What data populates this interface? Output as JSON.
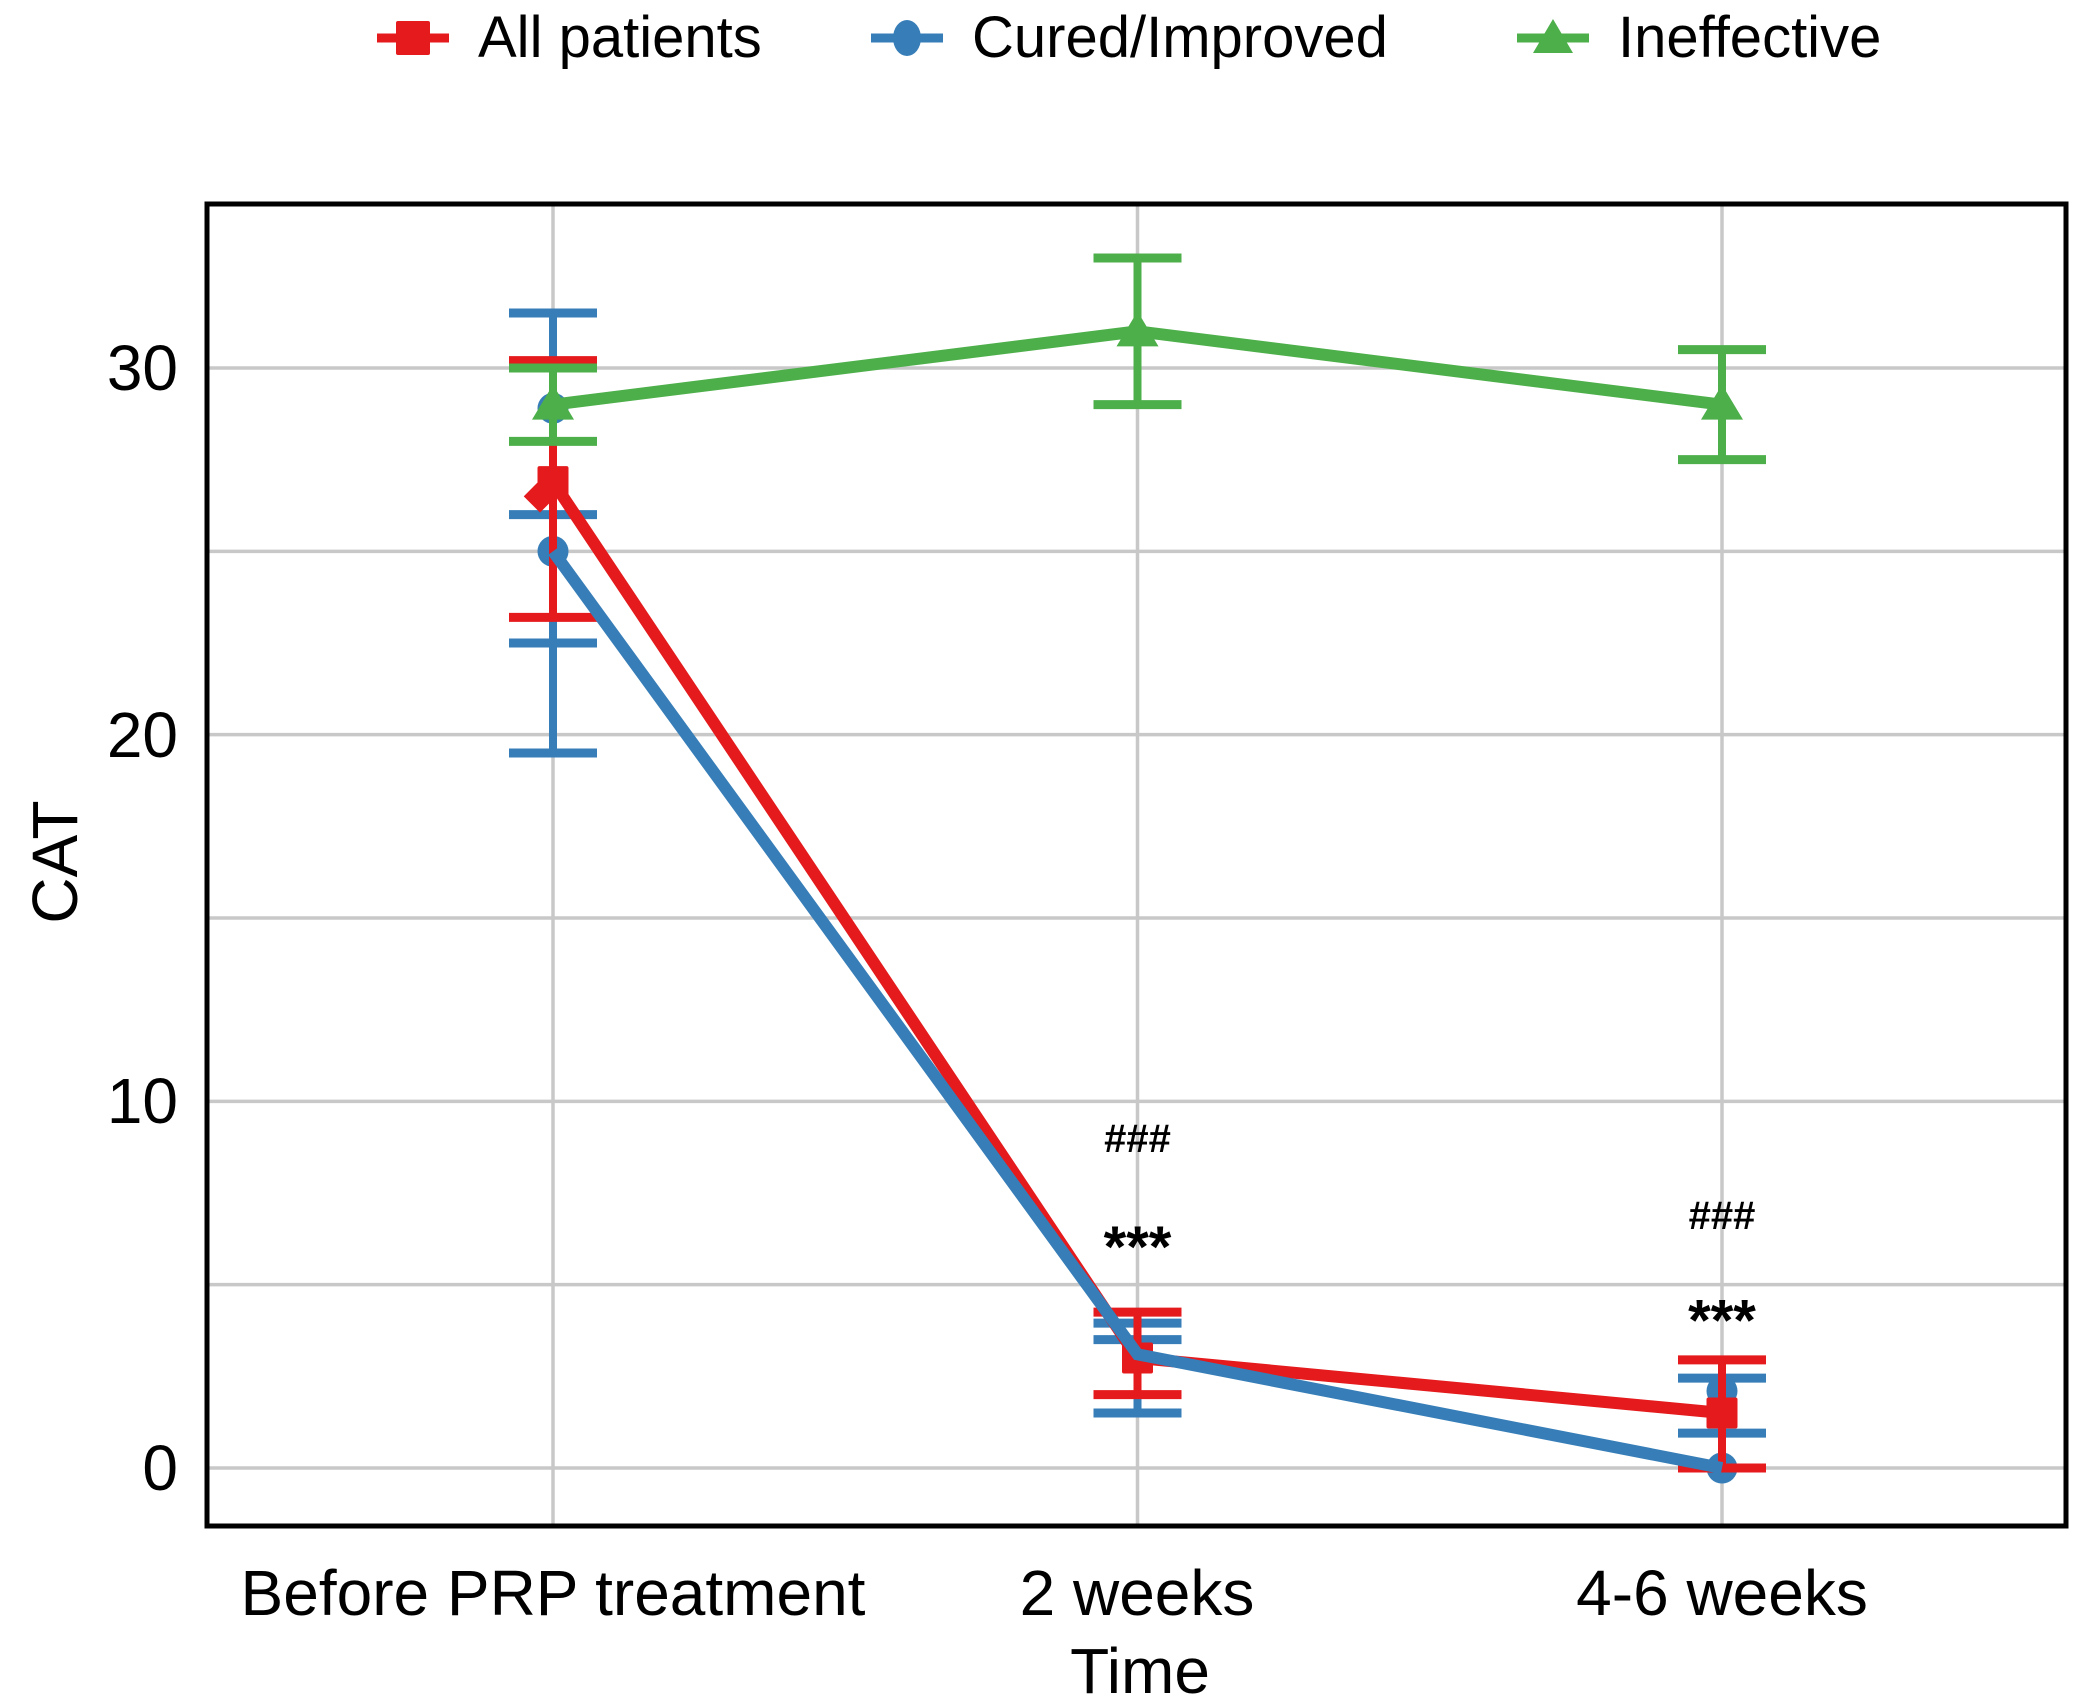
{
  "figure": {
    "background": "#ffffff",
    "grid_color": "#c8c8c8",
    "spine_color": "#000000",
    "text_color": "#000000"
  },
  "chart_data": {
    "type": "line",
    "title": "",
    "xlabel": "Time",
    "ylabel": "CAT",
    "categories": [
      "Before PRP treatment",
      "2 weeks",
      "4-6 weeks"
    ],
    "ytick_labels": [
      "30",
      "20",
      "10",
      "0"
    ],
    "yticks": [
      30,
      20,
      10,
      0
    ],
    "gridlines_y": [
      0,
      5,
      10,
      15,
      20,
      25,
      30
    ],
    "ylim": [
      -1.6,
      34.5
    ],
    "grid": true,
    "legend_position": "top",
    "series": [
      {
        "name": "All patients",
        "color": "#e41a1c",
        "marker": "square",
        "line_values": [
          26.9,
          3.0,
          1.5
        ],
        "points": [
          {
            "x_index": 0,
            "markers": [
              {
                "v": 26.9,
                "shape": "square"
              },
              {
                "v": 26.5,
                "shape": "diamond",
                "dx": -13
              }
            ],
            "error_span": [
              23.2,
              30.2
            ],
            "error_caps": [
              23.2,
              30.2
            ]
          },
          {
            "x_index": 1,
            "markers": [
              {
                "v": 3.0,
                "shape": "square"
              }
            ],
            "error_span": [
              2.0,
              4.25
            ],
            "error_caps": [
              2.0,
              4.25
            ]
          },
          {
            "x_index": 2,
            "markers": [
              {
                "v": 1.5,
                "shape": "square"
              }
            ],
            "error_span": [
              0.0,
              2.95
            ],
            "error_caps": [
              0.0,
              2.95
            ]
          }
        ]
      },
      {
        "name": "Cured/Improved",
        "color": "#377eb8",
        "marker": "circle",
        "line_values": [
          25.0,
          3.1,
          0.0
        ],
        "points": [
          {
            "x_index": 0,
            "markers": [
              {
                "v": 28.9,
                "shape": "circle"
              },
              {
                "v": 25.0,
                "shape": "circle"
              }
            ],
            "error_span": [
              19.5,
              31.5
            ],
            "error_caps": [
              19.5,
              22.5,
              26.0,
              31.5
            ]
          },
          {
            "x_index": 1,
            "markers": [
              {
                "v": 3.1,
                "shape": "circle"
              }
            ],
            "error_span": [
              1.5,
              3.95
            ],
            "error_caps": [
              1.5,
              3.5,
              3.95
            ]
          },
          {
            "x_index": 2,
            "markers": [
              {
                "v": 2.1,
                "shape": "circle"
              },
              {
                "v": 0.0,
                "shape": "circle"
              }
            ],
            "error_span": [
              0.0,
              2.45
            ],
            "error_caps": [
              0.95,
              2.45
            ]
          }
        ]
      },
      {
        "name": "Ineffective",
        "color": "#4daf4a",
        "marker": "triangle",
        "line_values": [
          29.0,
          31.0,
          29.0
        ],
        "points": [
          {
            "x_index": 0,
            "markers": [
              {
                "v": 29.0,
                "shape": "triangle"
              }
            ],
            "error_span": [
              28.0,
              30.0
            ],
            "error_caps": [
              28.0,
              30.0
            ]
          },
          {
            "x_index": 1,
            "markers": [
              {
                "v": 31.0,
                "shape": "triangle"
              }
            ],
            "error_span": [
              29.0,
              33.0
            ],
            "error_caps": [
              29.0,
              33.0
            ]
          },
          {
            "x_index": 2,
            "markers": [
              {
                "v": 29.0,
                "shape": "triangle"
              }
            ],
            "error_span": [
              27.5,
              30.5
            ],
            "error_caps": [
              27.5,
              30.5
            ]
          }
        ]
      }
    ],
    "annotations": [
      {
        "text": "###",
        "x_index": 1,
        "value": 9.0
      },
      {
        "text": "***",
        "x_index": 1,
        "value": 6.3
      },
      {
        "text": "###",
        "x_index": 2,
        "value": 6.9
      },
      {
        "text": "***",
        "x_index": 2,
        "value": 4.3
      }
    ]
  }
}
